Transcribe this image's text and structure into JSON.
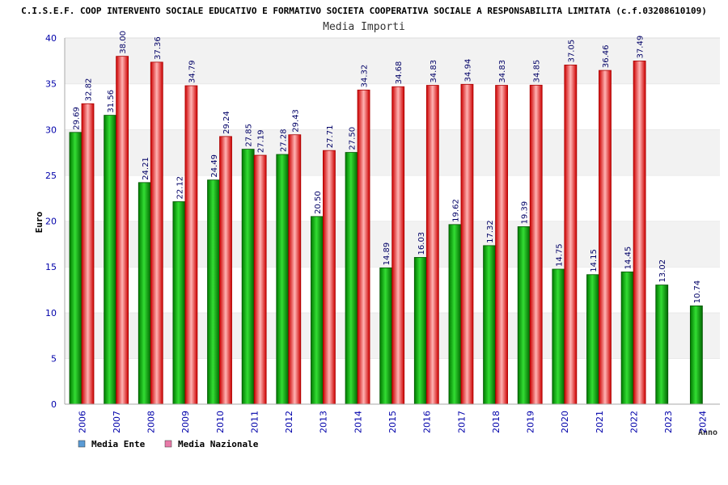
{
  "chart_data": {
    "type": "bar",
    "title": "C.I.S.E.F. COOP INTERVENTO SOCIALE EDUCATIVO E FORMATIVO SOCIETA COOPERATIVA SOCIALE A RESPONSABILITA LIMITATA (c.f.03208610109)",
    "subtitle": "Media Importi",
    "xlabel": "Anno",
    "ylabel": "Euro",
    "ylim": [
      0,
      40
    ],
    "yticks": [
      "0",
      "5",
      "10",
      "15",
      "20",
      "25",
      "30",
      "35",
      "40"
    ],
    "grid": true,
    "legend_position": "bottom-left",
    "categories": [
      "2006",
      "2007",
      "2008",
      "2009",
      "2010",
      "2011",
      "2012",
      "2013",
      "2014",
      "2015",
      "2016",
      "2017",
      "2018",
      "2019",
      "2020",
      "2021",
      "2022",
      "2023",
      "2024"
    ],
    "series": [
      {
        "name": "Media Ente",
        "color": "#00b000",
        "legend_color": "#5b9bd5",
        "values": [
          29.69,
          31.56,
          24.21,
          22.12,
          24.49,
          27.85,
          27.28,
          20.5,
          27.5,
          14.89,
          16.03,
          19.62,
          17.32,
          19.39,
          14.75,
          14.15,
          14.45,
          13.02,
          10.74
        ],
        "labels": [
          "29.69",
          "31.56",
          "24.21",
          "22.12",
          "24.49",
          "27.85",
          "27.28",
          "20.50",
          "27.50",
          "14.89",
          "16.03",
          "19.62",
          "17.32",
          "19.39",
          "14.75",
          "14.15",
          "14.45",
          "13.02",
          "10.74"
        ]
      },
      {
        "name": "Media Nazionale",
        "color": "#e8202a",
        "legend_color": "#e87aa8",
        "values": [
          32.82,
          38.0,
          37.36,
          34.79,
          29.24,
          27.19,
          29.43,
          27.71,
          34.32,
          34.68,
          34.83,
          34.94,
          34.83,
          34.85,
          37.05,
          36.46,
          37.49,
          null,
          null
        ],
        "labels": [
          "32.82",
          "38.00",
          "37.36",
          "34.79",
          "29.24",
          "27.19",
          "29.43",
          "27.71",
          "34.32",
          "34.68",
          "34.83",
          "34.94",
          "34.83",
          "34.85",
          "37.05",
          "36.46",
          "37.49",
          "",
          ""
        ]
      }
    ]
  }
}
